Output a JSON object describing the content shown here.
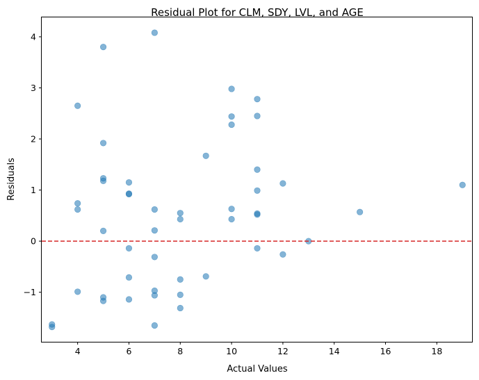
{
  "chart_data": {
    "type": "scatter",
    "title": "Residual Plot for CLM, SDY, LVL, and AGE",
    "xlabel": "Actual Values",
    "ylabel": "Residuals",
    "xlim": [
      2.6,
      19.4
    ],
    "ylim": [
      -1.97,
      4.38
    ],
    "xticks": [
      4,
      6,
      8,
      10,
      12,
      14,
      16,
      18
    ],
    "yticks": [
      -1,
      0,
      1,
      2,
      3,
      4
    ],
    "ytick_labels": [
      "−1",
      "0",
      "1",
      "2",
      "3",
      "4"
    ],
    "grid": false,
    "legend": "none",
    "marker_color": "#1f77b4",
    "marker_alpha": 0.55,
    "reference_line": {
      "y": 0,
      "color": "#d62728",
      "style": "dashed"
    },
    "points": [
      {
        "x": 3,
        "y": -1.63
      },
      {
        "x": 3,
        "y": -1.68
      },
      {
        "x": 4,
        "y": 2.65
      },
      {
        "x": 4,
        "y": 0.74
      },
      {
        "x": 4,
        "y": 0.62
      },
      {
        "x": 4,
        "y": -0.99
      },
      {
        "x": 5,
        "y": 3.8
      },
      {
        "x": 5,
        "y": 1.92
      },
      {
        "x": 5,
        "y": 1.23
      },
      {
        "x": 5,
        "y": 1.18
      },
      {
        "x": 5,
        "y": 0.2
      },
      {
        "x": 5,
        "y": -1.1
      },
      {
        "x": 5,
        "y": -1.17
      },
      {
        "x": 6,
        "y": 1.15
      },
      {
        "x": 6,
        "y": 0.93
      },
      {
        "x": 6,
        "y": 0.92
      },
      {
        "x": 6,
        "y": -0.14
      },
      {
        "x": 6,
        "y": -0.71
      },
      {
        "x": 6,
        "y": -1.14
      },
      {
        "x": 7,
        "y": 4.08
      },
      {
        "x": 7,
        "y": 0.62
      },
      {
        "x": 7,
        "y": 0.21
      },
      {
        "x": 7,
        "y": -0.31
      },
      {
        "x": 7,
        "y": -0.97
      },
      {
        "x": 7,
        "y": -1.06
      },
      {
        "x": 7,
        "y": -1.65
      },
      {
        "x": 8,
        "y": 0.55
      },
      {
        "x": 8,
        "y": 0.43
      },
      {
        "x": 8,
        "y": -0.75
      },
      {
        "x": 8,
        "y": -1.05
      },
      {
        "x": 8,
        "y": -1.31
      },
      {
        "x": 9,
        "y": 1.67
      },
      {
        "x": 9,
        "y": -0.69
      },
      {
        "x": 10,
        "y": 2.98
      },
      {
        "x": 10,
        "y": 2.44
      },
      {
        "x": 10,
        "y": 2.28
      },
      {
        "x": 10,
        "y": 0.63
      },
      {
        "x": 10,
        "y": 0.43
      },
      {
        "x": 11,
        "y": 2.78
      },
      {
        "x": 11,
        "y": 2.45
      },
      {
        "x": 11,
        "y": 1.4
      },
      {
        "x": 11,
        "y": 0.99
      },
      {
        "x": 11,
        "y": 0.54
      },
      {
        "x": 11,
        "y": 0.52
      },
      {
        "x": 11,
        "y": -0.14
      },
      {
        "x": 12,
        "y": 1.13
      },
      {
        "x": 12,
        "y": -0.26
      },
      {
        "x": 13,
        "y": 0.0
      },
      {
        "x": 15,
        "y": 0.57
      },
      {
        "x": 19,
        "y": 1.1
      }
    ]
  }
}
